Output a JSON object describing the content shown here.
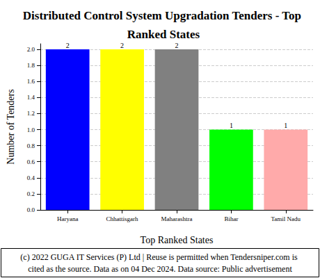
{
  "chart_data": {
    "type": "bar",
    "title": "Distributed Control System Upgradation Tenders - Top Ranked States",
    "x_label": "Top Ranked States",
    "y_label": "Number of Tenders",
    "categories": [
      "Haryana",
      "Chhattisgarh",
      "Maharashtra",
      "Bihar",
      "Tamil Nadu"
    ],
    "values": [
      2,
      2,
      2,
      1,
      1
    ],
    "colors": [
      "#0000ff",
      "#ffff00",
      "#808080",
      "#00ff00",
      "#ffaaaa"
    ],
    "ylim": [
      0,
      2.07
    ],
    "yticks": [
      {
        "value": 0,
        "label": "0.0"
      },
      {
        "value": 0.2,
        "label": "0.2"
      },
      {
        "value": 0.4,
        "label": "0.4"
      },
      {
        "value": 0.6,
        "label": "0.6"
      },
      {
        "value": 0.8,
        "label": "0.8"
      },
      {
        "value": 1,
        "label": "1.0"
      },
      {
        "value": 1.2,
        "label": "1.2"
      },
      {
        "value": 1.4,
        "label": "1.4"
      },
      {
        "value": 1.6,
        "label": "1.6"
      },
      {
        "value": 1.8,
        "label": "1.8"
      },
      {
        "value": 2,
        "label": "2.0"
      }
    ],
    "grid": true,
    "data_labels": true,
    "annotations": [
      "(c) 2022 GUGA IT Services (P) Ltd | Reuse is permitted when Tendersniper.com is cited as the source. Data as on 04 Dec 2024. Data source: Public advertisement"
    ]
  }
}
